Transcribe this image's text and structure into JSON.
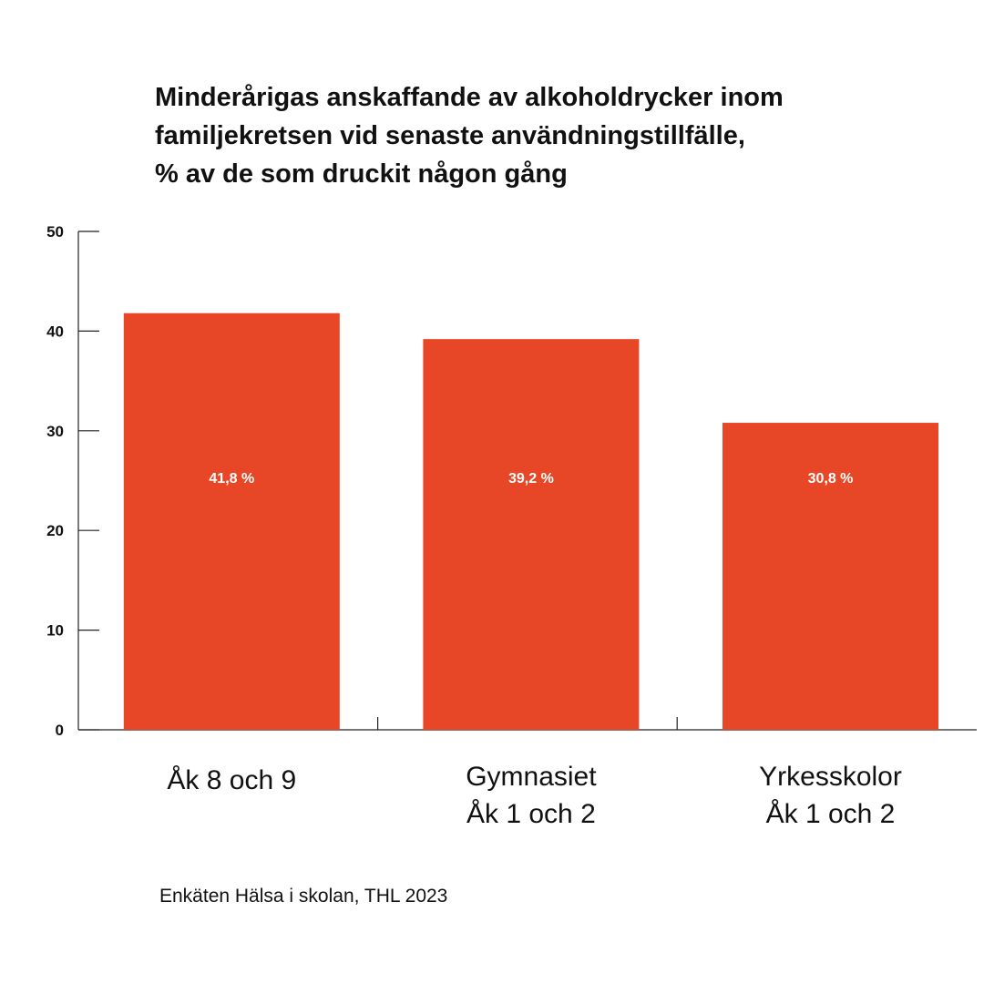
{
  "chart_data": {
    "type": "bar",
    "title_lines": [
      "Minderårigas anskaffande av alkoholdrycker inom",
      "familjekretsen vid senaste användningstillfälle,",
      "% av de som druckit någon gång"
    ],
    "categories": [
      [
        "Åk 8 och 9"
      ],
      [
        "Gymnasiet",
        "Åk 1 och 2"
      ],
      [
        "Yrkesskolor",
        "Åk 1 och 2"
      ]
    ],
    "values": [
      41.8,
      39.2,
      30.8
    ],
    "value_labels": [
      "41,8 %",
      "39,2 %",
      "30,8 %"
    ],
    "yticks": [
      0,
      10,
      20,
      30,
      40,
      50
    ],
    "ylim": [
      0,
      50
    ],
    "xlabel": "",
    "ylabel": "",
    "grid": false,
    "legend": "none",
    "bar_color": "#E84727",
    "source": "Enkäten Hälsa i skolan, THL 2023"
  }
}
